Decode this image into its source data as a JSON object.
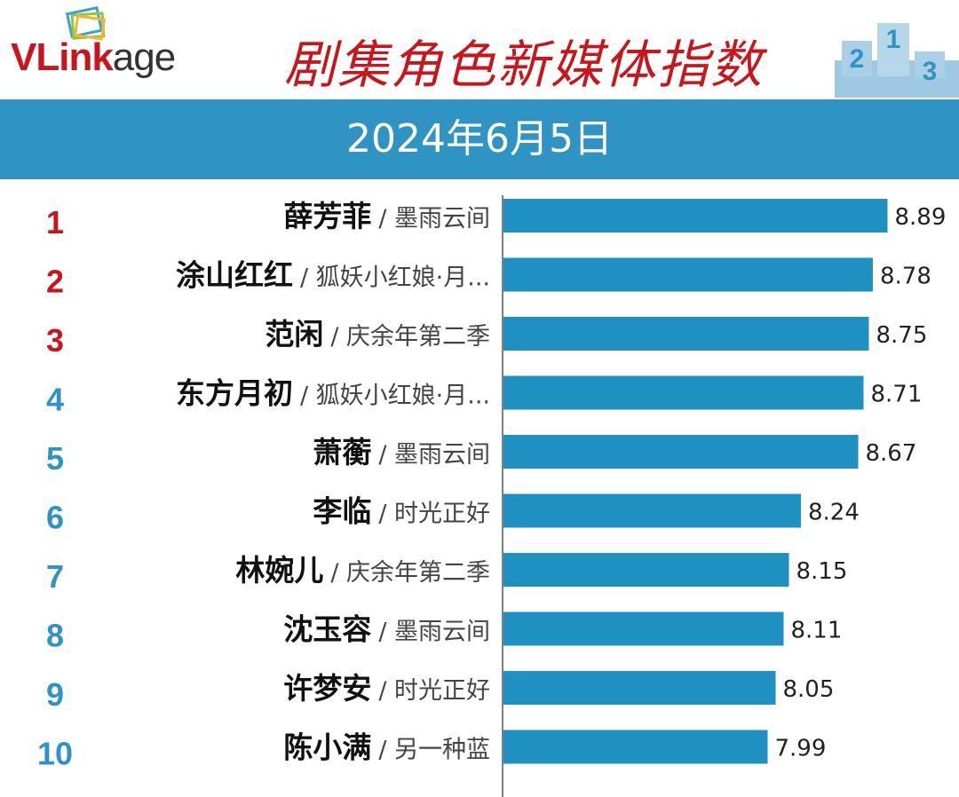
{
  "header": {
    "logo_text_red": "VLink",
    "logo_text_dark": "age",
    "title": "剧集角色新媒体指数",
    "podium_labels": [
      "2",
      "1",
      "3"
    ],
    "date": "2024年6月5日"
  },
  "colors": {
    "bar": "#1e90c2",
    "rank_top3": "#c8161d",
    "rank_rest": "#2f93c3",
    "band": "#2f93c3",
    "title": "#c8161d",
    "axis": "#555555"
  },
  "chart_data": {
    "type": "bar",
    "orientation": "horizontal",
    "title": "剧集角色新媒体指数",
    "subtitle": "2024年6月5日",
    "xlim": [
      6.0,
      9.4
    ],
    "grid": false,
    "legend": "none",
    "rows": [
      {
        "rank": "1",
        "name": "薛芳菲",
        "drama": "/ 墨雨云间",
        "value": 8.89,
        "label": "8.89"
      },
      {
        "rank": "2",
        "name": "涂山红红",
        "drama": "/ 狐妖小红娘·月...",
        "value": 8.78,
        "label": "8.78"
      },
      {
        "rank": "3",
        "name": "范闲",
        "drama": "/ 庆余年第二季",
        "value": 8.75,
        "label": "8.75"
      },
      {
        "rank": "4",
        "name": "东方月初",
        "drama": "/ 狐妖小红娘·月...",
        "value": 8.71,
        "label": "8.71"
      },
      {
        "rank": "5",
        "name": "萧蘅",
        "drama": "/ 墨雨云间",
        "value": 8.67,
        "label": "8.67"
      },
      {
        "rank": "6",
        "name": "李临",
        "drama": "/ 时光正好",
        "value": 8.24,
        "label": "8.24"
      },
      {
        "rank": "7",
        "name": "林婉儿",
        "drama": "/ 庆余年第二季",
        "value": 8.15,
        "label": "8.15"
      },
      {
        "rank": "8",
        "name": "沈玉容",
        "drama": "/ 墨雨云间",
        "value": 8.11,
        "label": "8.11"
      },
      {
        "rank": "9",
        "name": "许梦安",
        "drama": "/ 时光正好",
        "value": 8.05,
        "label": "8.05"
      },
      {
        "rank": "10",
        "name": "陈小满",
        "drama": "/ 另一种蓝",
        "value": 7.99,
        "label": "7.99"
      }
    ]
  }
}
